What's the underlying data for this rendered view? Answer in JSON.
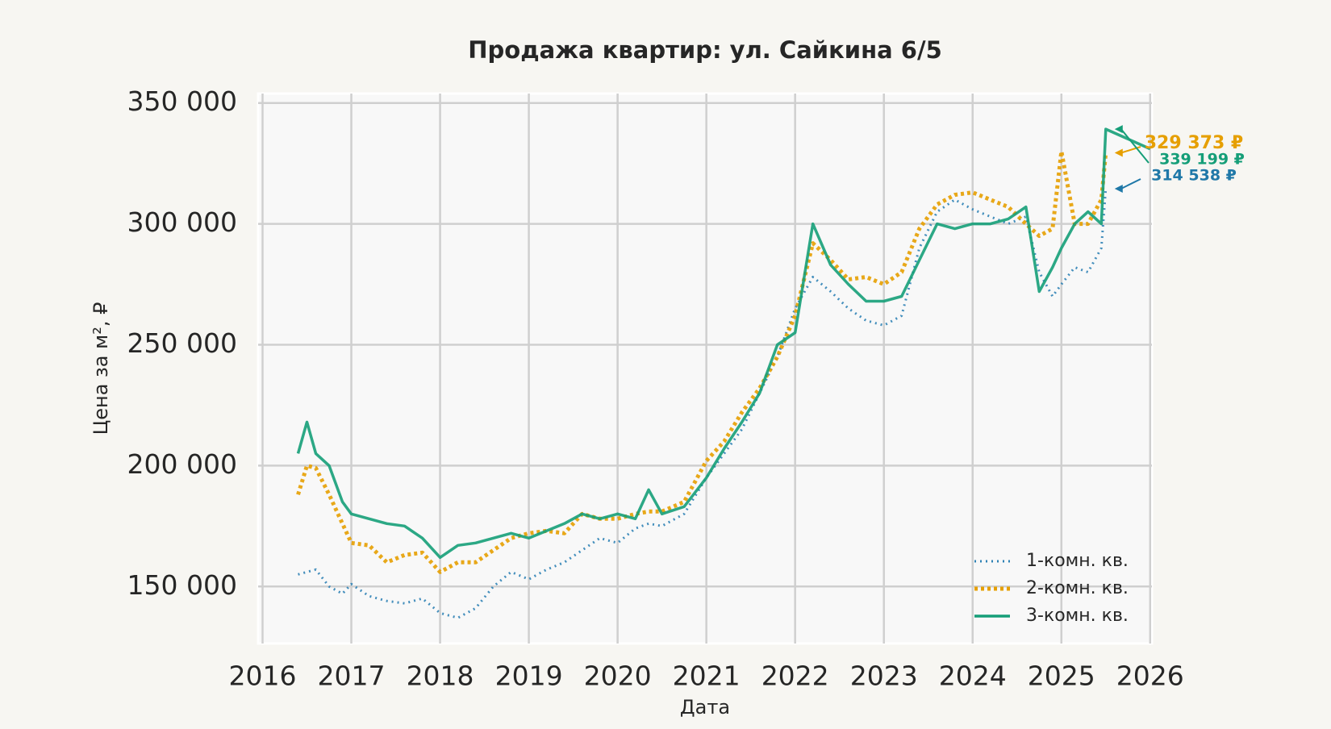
{
  "chart_data": {
    "type": "line",
    "title": "Продажа квартир: ул. Сайкина 6/5",
    "xlabel": "Дата",
    "ylabel": "Цена за м², ₽",
    "x": [
      2016.4,
      2016.5,
      2016.6,
      2016.75,
      2016.9,
      2017.0,
      2017.2,
      2017.4,
      2017.6,
      2017.8,
      2018.0,
      2018.2,
      2018.4,
      2018.6,
      2018.8,
      2019.0,
      2019.2,
      2019.4,
      2019.6,
      2019.8,
      2020.0,
      2020.2,
      2020.35,
      2020.5,
      2020.75,
      2021.0,
      2021.2,
      2021.4,
      2021.6,
      2021.8,
      2022.0,
      2022.2,
      2022.4,
      2022.6,
      2022.8,
      2023.0,
      2023.2,
      2023.4,
      2023.6,
      2023.8,
      2024.0,
      2024.2,
      2024.4,
      2024.6,
      2024.75,
      2024.9,
      2025.0,
      2025.15,
      2025.3,
      2025.45,
      2025.5,
      2026.0
    ],
    "series": [
      {
        "name": "1-комн. кв.",
        "color": "#2f82b5",
        "dash": "2 5",
        "width": 3,
        "values": [
          155000,
          156000,
          157000,
          150000,
          147000,
          151000,
          146000,
          144000,
          143000,
          145000,
          139000,
          137000,
          141000,
          150000,
          156000,
          153000,
          157000,
          160000,
          165000,
          170000,
          168000,
          174000,
          176000,
          175000,
          180000,
          195000,
          205000,
          215000,
          230000,
          245000,
          265000,
          278000,
          272000,
          265000,
          260000,
          258000,
          262000,
          290000,
          305000,
          310000,
          306000,
          303000,
          300000,
          303000,
          280000,
          270000,
          275000,
          282000,
          280000,
          290000,
          314538,
          null
        ]
      },
      {
        "name": "2-комн. кв.",
        "color": "#e69f00",
        "dash": "4 4",
        "width": 5,
        "values": [
          188000,
          200000,
          199000,
          188000,
          176000,
          168000,
          167000,
          160000,
          163000,
          164000,
          156000,
          160000,
          160000,
          165000,
          170000,
          172000,
          173000,
          172000,
          180000,
          178000,
          178000,
          180000,
          181000,
          181000,
          185000,
          202000,
          210000,
          222000,
          232000,
          245000,
          262000,
          292000,
          285000,
          277000,
          278000,
          275000,
          280000,
          298000,
          308000,
          312000,
          313000,
          310000,
          307000,
          300000,
          295000,
          298000,
          330000,
          300000,
          300000,
          310000,
          329373,
          null
        ]
      },
      {
        "name": "3-комн. кв.",
        "color": "#159e78",
        "dash": "",
        "width": 3.5,
        "values": [
          205000,
          218000,
          205000,
          200000,
          185000,
          180000,
          178000,
          176000,
          175000,
          170000,
          162000,
          167000,
          168000,
          170000,
          172000,
          170000,
          173000,
          176000,
          180000,
          178000,
          180000,
          178000,
          190000,
          180000,
          183000,
          195000,
          207000,
          218000,
          230000,
          250000,
          255000,
          300000,
          283000,
          275000,
          268000,
          268000,
          270000,
          285000,
          300000,
          298000,
          300000,
          300000,
          302000,
          307000,
          272000,
          282000,
          290000,
          300000,
          305000,
          300000,
          339199,
          331000
        ]
      }
    ],
    "annotations": [
      {
        "text": "329 373 ₽",
        "x": 2025.6,
        "y": 329373,
        "color": "#e69f00"
      },
      {
        "text": "339 199 ₽",
        "x": 2025.6,
        "y": 339199,
        "color": "#159e78"
      },
      {
        "text": "314 538 ₽",
        "x": 2025.6,
        "y": 314538,
        "color": "#1f78a8"
      }
    ],
    "xlim": [
      2015.95,
      2026.02
    ],
    "ylim": [
      126400,
      353900
    ],
    "xticks": [
      2016,
      2017,
      2018,
      2019,
      2020,
      2021,
      2022,
      2023,
      2024,
      2025,
      2026
    ],
    "yticks": [
      {
        "value": 150000,
        "label": "150 000"
      },
      {
        "value": 200000,
        "label": "200 000"
      },
      {
        "value": 250000,
        "label": "250 000"
      },
      {
        "value": 300000,
        "label": "300 000"
      },
      {
        "value": 350000,
        "label": "350 000"
      }
    ],
    "grid": true,
    "legend": "lower right"
  }
}
